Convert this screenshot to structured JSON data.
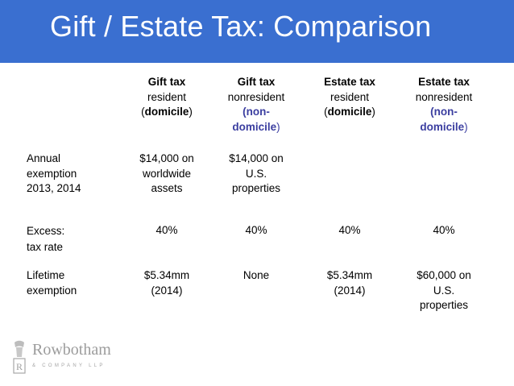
{
  "slide": {
    "title": "Gift / Estate Tax:  Comparison"
  },
  "headers": [
    {
      "line1": "Gift tax",
      "line2": "resident",
      "line3_open": "(",
      "line3_key": "domicile",
      "line3_close": ")"
    },
    {
      "line1": "Gift tax",
      "line2": "nonresident",
      "line3": "(non-",
      "line4": "domicile",
      "line4_close": ")"
    },
    {
      "line1": "Estate tax",
      "line2": "resident",
      "line3_open": "(",
      "line3_key": "domicile",
      "line3_close": ")"
    },
    {
      "line1": "Estate tax",
      "line2": "nonresident",
      "line3": "(non-",
      "line4": "domicile",
      "line4_close": ")"
    }
  ],
  "rows": [
    {
      "label_lines": [
        "Annual",
        "exemption",
        "2013, 2014"
      ],
      "cells": [
        [
          "$14,000 on",
          "worldwide",
          "assets"
        ],
        [
          "$14,000 on",
          "U.S.",
          "properties"
        ],
        [],
        []
      ]
    },
    {
      "label_lines": [
        "Excess:",
        "tax rate"
      ],
      "cells": [
        [
          "40%"
        ],
        [
          "40%"
        ],
        [
          "40%"
        ],
        [
          "40%"
        ]
      ]
    },
    {
      "label_lines": [
        "Lifetime",
        "exemption"
      ],
      "cells": [
        [
          "$5.34mm",
          "(2014)"
        ],
        [
          "None"
        ],
        [
          "$5.34mm",
          "(2014)"
        ],
        [
          "$60,000 on",
          "U.S.",
          "properties"
        ]
      ]
    }
  ],
  "logo": {
    "name": "Rowbotham",
    "sub": "& COMPANY LLP"
  },
  "colors": {
    "title_bar": "#3a6fd0",
    "accent_blue_text": "#3b3ea0"
  }
}
